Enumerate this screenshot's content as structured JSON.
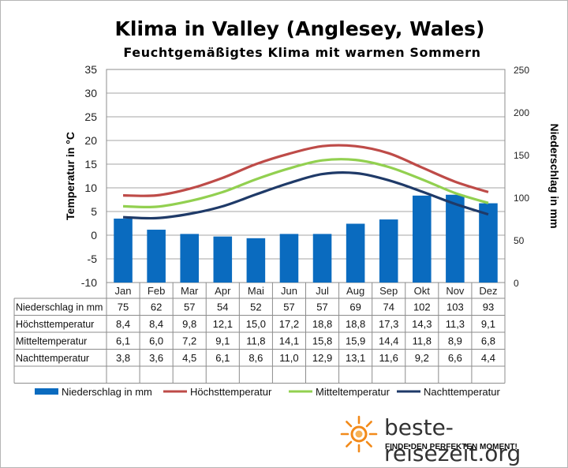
{
  "header": {
    "title": "Klima in Valley (Anglesey, Wales)",
    "subtitle": "Feuchtgemäßigtes Klima mit warmen Sommern"
  },
  "chart_data": {
    "type": "bar+line",
    "categories": [
      "Jan",
      "Feb",
      "Mar",
      "Apr",
      "Mai",
      "Jun",
      "Jul",
      "Aug",
      "Sep",
      "Okt",
      "Nov",
      "Dez"
    ],
    "ylabel_left": "Temperatur in °C",
    "ylabel_right": "Niederschlag in mm",
    "ylim_left": [
      -10,
      35
    ],
    "ylim_right": [
      0,
      250
    ],
    "yticks_left": [
      "35",
      "30",
      "25",
      "20",
      "15",
      "10",
      "5",
      "0",
      "-5",
      "-10"
    ],
    "yticks_right": [
      "250",
      "200",
      "150",
      "100",
      "50",
      "0"
    ],
    "grid": true,
    "legend_position": "bottom",
    "bar_color": "#0a6bbf",
    "series": [
      {
        "name": "Niederschlag in mm",
        "kind": "bar",
        "axis": "right",
        "color": "#0a6bbf",
        "values": [
          75,
          62,
          57,
          54,
          52,
          57,
          57,
          69,
          74,
          102,
          103,
          93
        ],
        "labels": [
          "75",
          "62",
          "57",
          "54",
          "52",
          "57",
          "57",
          "69",
          "74",
          "102",
          "103",
          "93"
        ]
      },
      {
        "name": "Höchsttemperatur",
        "kind": "line",
        "axis": "left",
        "color": "#be4b48",
        "values": [
          8.4,
          8.4,
          9.8,
          12.1,
          15.0,
          17.2,
          18.8,
          18.8,
          17.3,
          14.3,
          11.3,
          9.1
        ],
        "labels": [
          "8,4",
          "8,4",
          "9,8",
          "12,1",
          "15,0",
          "17,2",
          "18,8",
          "18,8",
          "17,3",
          "14,3",
          "11,3",
          "9,1"
        ]
      },
      {
        "name": "Mitteltemperatur",
        "kind": "line",
        "axis": "left",
        "color": "#92d050",
        "values": [
          6.1,
          6.0,
          7.2,
          9.1,
          11.8,
          14.1,
          15.8,
          15.9,
          14.4,
          11.8,
          8.9,
          6.8
        ],
        "labels": [
          "6,1",
          "6,0",
          "7,2",
          "9,1",
          "11,8",
          "14,1",
          "15,8",
          "15,9",
          "14,4",
          "11,8",
          "8,9",
          "6,8"
        ]
      },
      {
        "name": "Nachttemperatur",
        "kind": "line",
        "axis": "left",
        "color": "#1f3a68",
        "values": [
          3.8,
          3.6,
          4.5,
          6.1,
          8.6,
          11.0,
          12.9,
          13.1,
          11.6,
          9.2,
          6.6,
          4.4
        ],
        "labels": [
          "3,8",
          "3,6",
          "4,5",
          "6,1",
          "8,6",
          "11,0",
          "12,9",
          "13,1",
          "11,6",
          "9,2",
          "6,6",
          "4,4"
        ]
      }
    ]
  },
  "brand": {
    "name": "beste-reisezeit.org",
    "slogan": "FINDE DEN PERFEKTEN MOMENT!",
    "icon": "sun-icon",
    "accent": "#f28a1a"
  }
}
